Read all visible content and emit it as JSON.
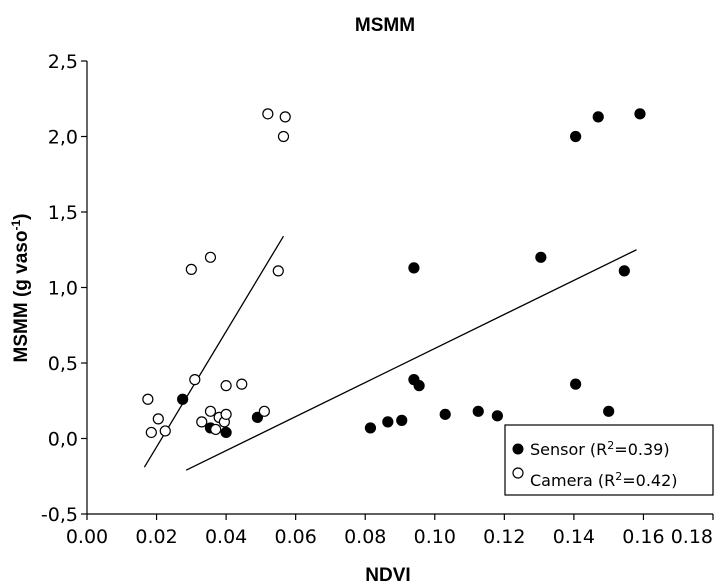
{
  "chart_data": {
    "type": "scatter",
    "title": "MSMM",
    "xlabel": "NDVI",
    "ylabel_main": "MSMM (g vaso",
    "ylabel_sup": "-1",
    "ylabel_close": ")",
    "xlim": [
      0.0,
      0.18
    ],
    "ylim": [
      -0.5,
      2.5
    ],
    "x_ticks": [
      {
        "value": 0.0,
        "label": "0.00"
      },
      {
        "value": 0.02,
        "label": "0.02"
      },
      {
        "value": 0.04,
        "label": "0.04"
      },
      {
        "value": 0.06,
        "label": "0.06"
      },
      {
        "value": 0.08,
        "label": "0.08"
      },
      {
        "value": 0.1,
        "label": "0.10"
      },
      {
        "value": 0.12,
        "label": "0.12"
      },
      {
        "value": 0.14,
        "label": "0.14"
      },
      {
        "value": 0.16,
        "label": "0.16"
      },
      {
        "value": 0.18,
        "label": "0.18"
      }
    ],
    "y_ticks": [
      {
        "value": -0.5,
        "label": "-0,5"
      },
      {
        "value": 0.0,
        "label": "0,0"
      },
      {
        "value": 0.5,
        "label": "0,5"
      },
      {
        "value": 1.0,
        "label": "1,0"
      },
      {
        "value": 1.5,
        "label": "1,5"
      },
      {
        "value": 2.0,
        "label": "2,0"
      },
      {
        "value": 2.5,
        "label": "2,5"
      }
    ],
    "grid": false,
    "legend_position": "bottom-right",
    "series": [
      {
        "name": "Sensor",
        "legend_prefix": "Sensor (R",
        "legend_sup": "2",
        "legend_suffix": "=0.39)",
        "marker": "filled-circle",
        "color": "#000000",
        "points": [
          {
            "x": 0.0275,
            "y": 0.26
          },
          {
            "x": 0.0355,
            "y": 0.07
          },
          {
            "x": 0.04,
            "y": 0.04
          },
          {
            "x": 0.049,
            "y": 0.14
          },
          {
            "x": 0.0815,
            "y": 0.07
          },
          {
            "x": 0.0865,
            "y": 0.11
          },
          {
            "x": 0.0905,
            "y": 0.12
          },
          {
            "x": 0.094,
            "y": 1.13
          },
          {
            "x": 0.094,
            "y": 0.39
          },
          {
            "x": 0.0955,
            "y": 0.35
          },
          {
            "x": 0.103,
            "y": 0.16
          },
          {
            "x": 0.1125,
            "y": 0.18
          },
          {
            "x": 0.118,
            "y": 0.15
          },
          {
            "x": 0.1305,
            "y": 1.2
          },
          {
            "x": 0.1405,
            "y": 2.0
          },
          {
            "x": 0.1405,
            "y": 0.36
          },
          {
            "x": 0.147,
            "y": 2.13
          },
          {
            "x": 0.15,
            "y": 0.18
          },
          {
            "x": 0.1545,
            "y": 1.11
          },
          {
            "x": 0.159,
            "y": 2.15
          }
        ],
        "fit": {
          "x": [
            0.0285,
            0.158
          ],
          "y": [
            -0.21,
            1.25
          ]
        }
      },
      {
        "name": "Camera",
        "legend_prefix": "Camera (R",
        "legend_sup": "2",
        "legend_suffix": "=0.42)",
        "marker": "open-circle",
        "color": "#000000",
        "points": [
          {
            "x": 0.0175,
            "y": 0.26
          },
          {
            "x": 0.0185,
            "y": 0.04
          },
          {
            "x": 0.0205,
            "y": 0.13
          },
          {
            "x": 0.0225,
            "y": 0.05
          },
          {
            "x": 0.03,
            "y": 1.12
          },
          {
            "x": 0.031,
            "y": 0.39
          },
          {
            "x": 0.033,
            "y": 0.11
          },
          {
            "x": 0.0355,
            "y": 1.2
          },
          {
            "x": 0.0355,
            "y": 0.18
          },
          {
            "x": 0.037,
            "y": 0.06
          },
          {
            "x": 0.038,
            "y": 0.14
          },
          {
            "x": 0.0395,
            "y": 0.11
          },
          {
            "x": 0.04,
            "y": 0.16
          },
          {
            "x": 0.04,
            "y": 0.35
          },
          {
            "x": 0.0445,
            "y": 0.36
          },
          {
            "x": 0.051,
            "y": 0.18
          },
          {
            "x": 0.052,
            "y": 2.15
          },
          {
            "x": 0.055,
            "y": 1.11
          },
          {
            "x": 0.0565,
            "y": 2.0
          },
          {
            "x": 0.057,
            "y": 2.13
          }
        ],
        "fit": {
          "x": [
            0.0165,
            0.0565
          ],
          "y": [
            -0.19,
            1.34
          ]
        }
      }
    ]
  }
}
